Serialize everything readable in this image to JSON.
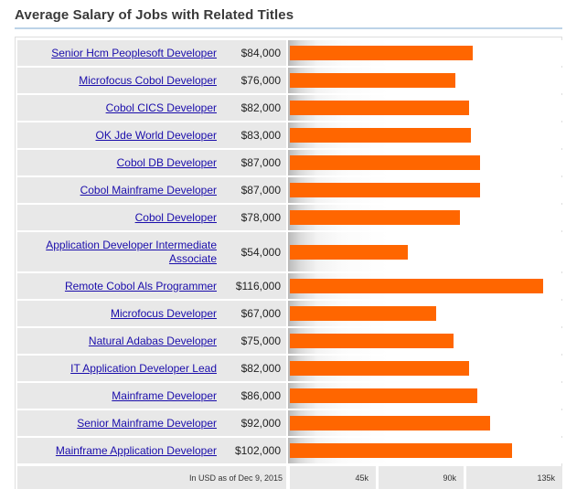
{
  "heading": "Average Salary of Jobs with Related Titles",
  "footer_note": "In USD as of Dec 9, 2015",
  "colors": {
    "bar": "#ff6600",
    "link": "#1a0dab",
    "row_bg": "#e8e8e8"
  },
  "chart_data": {
    "type": "bar",
    "orientation": "horizontal",
    "title": "Average Salary of Jobs with Related Titles",
    "xlabel": "In USD as of Dec 9, 2015",
    "xlim": [
      0,
      135000
    ],
    "ticks": [
      "45k",
      "90k",
      "135k"
    ],
    "categories": [
      "Senior Hcm Peoplesoft Developer",
      "Microfocus Cobol Developer",
      "Cobol CICS Developer",
      "OK Jde World Developer",
      "Cobol DB Developer",
      "Cobol Mainframe Developer",
      "Cobol Developer",
      "Application Developer Intermediate Associate",
      "Remote Cobol Als Programmer",
      "Microfocus Developer",
      "Natural Adabas Developer",
      "IT Application Developer Lead",
      "Mainframe Developer",
      "Senior Mainframe Developer",
      "Mainframe Application Developer"
    ],
    "values": [
      84000,
      76000,
      82000,
      83000,
      87000,
      87000,
      78000,
      54000,
      116000,
      67000,
      75000,
      82000,
      86000,
      92000,
      102000
    ],
    "labels": [
      "$84,000",
      "$76,000",
      "$82,000",
      "$83,000",
      "$87,000",
      "$87,000",
      "$78,000",
      "$54,000",
      "$116,000",
      "$67,000",
      "$75,000",
      "$82,000",
      "$86,000",
      "$92,000",
      "$102,000"
    ]
  }
}
